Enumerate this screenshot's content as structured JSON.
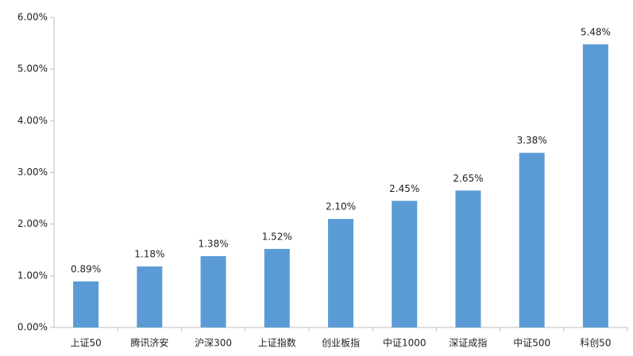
{
  "chart_data": {
    "type": "bar",
    "categories": [
      "上证50",
      "腾讯济安",
      "沪深300",
      "上证指数",
      "创业板指",
      "中证1000",
      "深证成指",
      "中证500",
      "科创50"
    ],
    "values": [
      0.89,
      1.18,
      1.38,
      1.52,
      2.1,
      2.45,
      2.65,
      3.38,
      5.48
    ],
    "value_labels": [
      "0.89%",
      "1.18%",
      "1.38%",
      "1.52%",
      "2.10%",
      "2.45%",
      "2.65%",
      "3.38%",
      "5.48%"
    ],
    "color": "#5b9bd5",
    "ylim": [
      0,
      6
    ],
    "yticks": [
      {
        "value": 0,
        "label": "0.00%"
      },
      {
        "value": 1,
        "label": "1.00%"
      },
      {
        "value": 2,
        "label": "2.00%"
      },
      {
        "value": 3,
        "label": "3.00%"
      },
      {
        "value": 4,
        "label": "4.00%"
      },
      {
        "value": 5,
        "label": "5.00%"
      },
      {
        "value": 6,
        "label": "6.00%"
      }
    ],
    "grid": false
  }
}
